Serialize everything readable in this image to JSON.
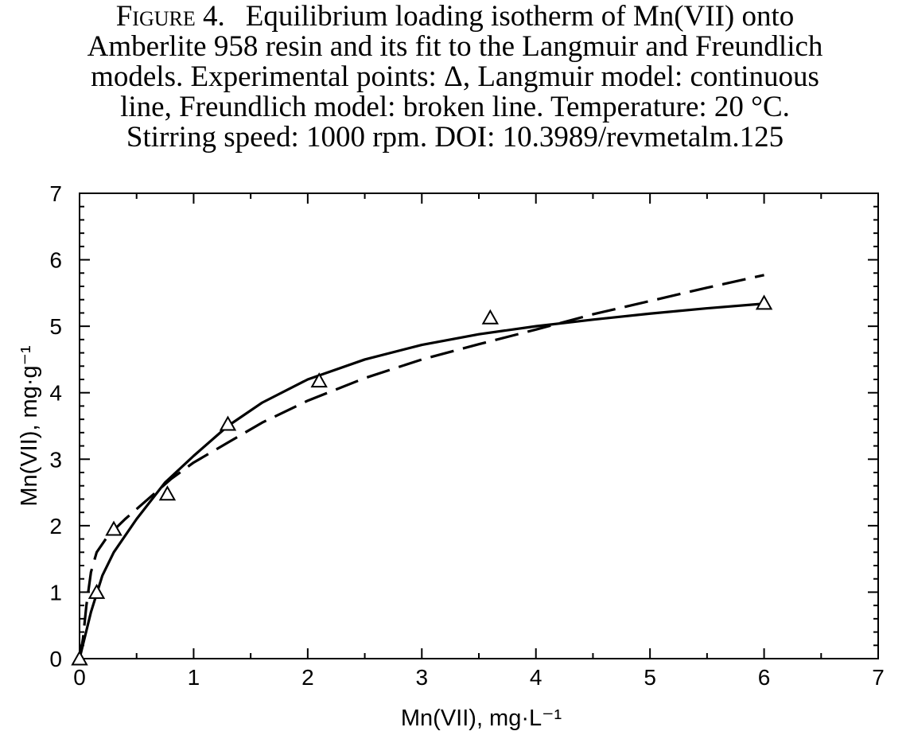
{
  "caption": {
    "figure_label": "Figure 4.",
    "lines": [
      "Equilibrium loading isotherm of Mn(VII) onto",
      "Amberlite 958 resin and its fit to the Langmuir and Freundlich",
      "models. Experimental points: Δ, Langmuir model: continuous",
      "line, Freundlich model: broken line. Temperature: 20 °C.",
      "Stirring speed: 1000 rpm.  DOI: 10.3989/revmetalm.125"
    ]
  },
  "chart_data": {
    "type": "scatter",
    "title": "",
    "xlabel": "Mn(VII), mg·L⁻¹",
    "ylabel": "Mn(VII), mg·g⁻¹",
    "xlim": [
      0,
      7
    ],
    "ylim": [
      0,
      7
    ],
    "x_ticks": [
      "0",
      "1",
      "2",
      "3",
      "4",
      "5",
      "6",
      "7"
    ],
    "y_ticks": [
      "0",
      "1",
      "2",
      "3",
      "4",
      "5",
      "6",
      "7"
    ],
    "grid": false,
    "series": [
      {
        "marker": "triangle",
        "points": [
          [
            0.0,
            0.0
          ],
          [
            0.15,
            1.0
          ],
          [
            0.3,
            1.95
          ],
          [
            0.77,
            2.48
          ],
          [
            1.3,
            3.53
          ],
          [
            2.1,
            4.18
          ],
          [
            3.6,
            5.13
          ],
          [
            6.0,
            5.35
          ]
        ]
      },
      {
        "line_style": "solid",
        "points": [
          [
            0.0,
            0.0
          ],
          [
            0.1,
            0.7
          ],
          [
            0.2,
            1.25
          ],
          [
            0.3,
            1.6
          ],
          [
            0.5,
            2.1
          ],
          [
            0.75,
            2.65
          ],
          [
            1.0,
            3.05
          ],
          [
            1.3,
            3.5
          ],
          [
            1.6,
            3.85
          ],
          [
            2.0,
            4.2
          ],
          [
            2.5,
            4.5
          ],
          [
            3.0,
            4.72
          ],
          [
            3.5,
            4.88
          ],
          [
            4.0,
            5.0
          ],
          [
            4.5,
            5.1
          ],
          [
            5.0,
            5.19
          ],
          [
            5.5,
            5.27
          ],
          [
            6.0,
            5.34
          ]
        ]
      },
      {
        "line_style": "dashed",
        "points": [
          [
            0.0,
            0.0
          ],
          [
            0.03,
            0.3
          ],
          [
            0.06,
            0.8
          ],
          [
            0.1,
            1.3
          ],
          [
            0.15,
            1.6
          ],
          [
            0.25,
            1.85
          ],
          [
            0.4,
            2.1
          ],
          [
            0.6,
            2.4
          ],
          [
            0.8,
            2.7
          ],
          [
            1.0,
            2.95
          ],
          [
            1.3,
            3.25
          ],
          [
            1.6,
            3.55
          ],
          [
            2.0,
            3.88
          ],
          [
            2.5,
            4.22
          ],
          [
            3.0,
            4.5
          ],
          [
            3.5,
            4.73
          ],
          [
            4.0,
            4.95
          ],
          [
            4.5,
            5.18
          ],
          [
            5.0,
            5.38
          ],
          [
            5.5,
            5.58
          ],
          [
            6.0,
            5.77
          ]
        ]
      }
    ]
  }
}
